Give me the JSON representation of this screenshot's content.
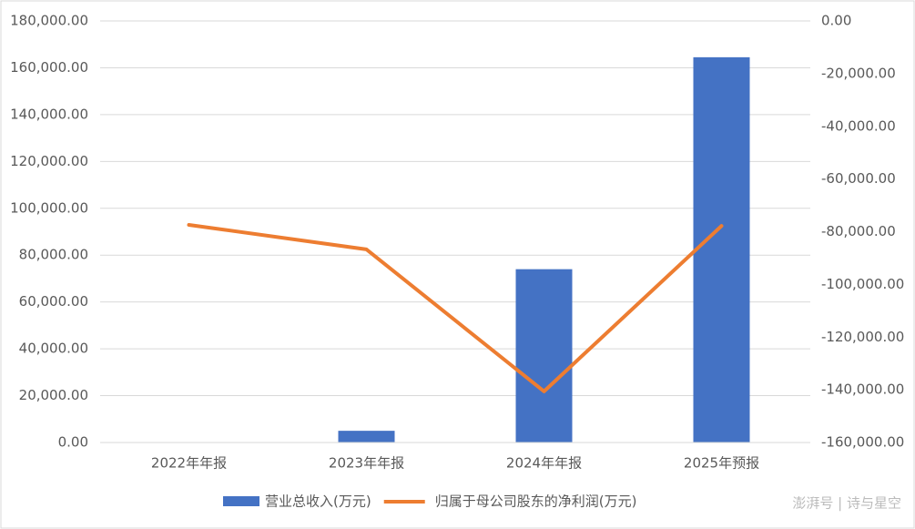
{
  "chart_data": {
    "type": "bar-line",
    "categories": [
      "2022年年报",
      "2023年年报",
      "2024年年报",
      "2025年预报"
    ],
    "series": [
      {
        "name": "营业总收入(万元)",
        "type": "bar",
        "color": "#4472c4",
        "values": [
          0,
          5000,
          74000,
          164500
        ]
      },
      {
        "name": "归属于母公司股东的净利润(万元)",
        "type": "line",
        "axis": "y2",
        "color": "#ed7d31",
        "values": [
          -77400,
          -86700,
          -140600,
          -77800
        ]
      }
    ],
    "ylim": [
      0,
      180000
    ],
    "yticks": [
      {
        "value": 0,
        "label": "0.00"
      },
      {
        "value": 20000,
        "label": "20,000.00"
      },
      {
        "value": 40000,
        "label": "40,000.00"
      },
      {
        "value": 60000,
        "label": "60,000.00"
      },
      {
        "value": 80000,
        "label": "80,000.00"
      },
      {
        "value": 100000,
        "label": "100,000.00"
      },
      {
        "value": 120000,
        "label": "120,000.00"
      },
      {
        "value": 140000,
        "label": "140,000.00"
      },
      {
        "value": 160000,
        "label": "160,000.00"
      },
      {
        "value": 180000,
        "label": "180,000.00"
      }
    ],
    "y2lim": [
      -160000,
      0
    ],
    "y2ticks": [
      {
        "value": 0,
        "label": "0.00"
      },
      {
        "value": -20000,
        "label": "-20,000.00"
      },
      {
        "value": -40000,
        "label": "-40,000.00"
      },
      {
        "value": -60000,
        "label": "-60,000.00"
      },
      {
        "value": -80000,
        "label": "-80,000.00"
      },
      {
        "value": -100000,
        "label": "-100,000.00"
      },
      {
        "value": -120000,
        "label": "-120,000.00"
      },
      {
        "value": -140000,
        "label": "-140,000.00"
      },
      {
        "value": -160000,
        "label": "-160,000.00"
      }
    ],
    "grid": true,
    "legend": "bottom",
    "watermark": "澎湃号 | 诗与星空"
  }
}
